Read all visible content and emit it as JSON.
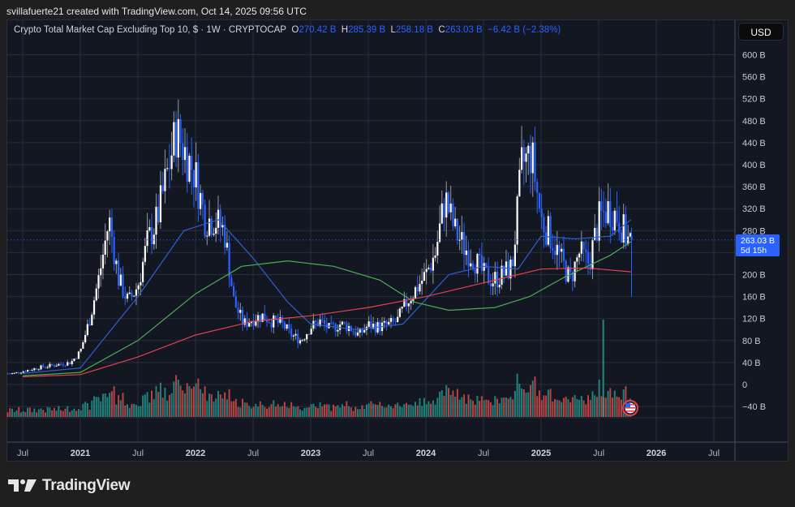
{
  "header": {
    "attribution": "svillafuerte21 created with TradingView.com, Oct 14, 2025 09:56 UTC"
  },
  "legend": {
    "symbol_title": "Crypto Total Market Cap Excluding Top 10, $ · 1W · CRYPTOCAP",
    "open_label": "O",
    "open": "270.42 B",
    "high_label": "H",
    "high": "285.39 B",
    "low_label": "L",
    "low": "258.18 B",
    "close_label": "C",
    "close": "263.03 B",
    "change": "−6.42 B (−2.38%)"
  },
  "price_scale": {
    "currency_button": "USD",
    "last_price": "263.03 B",
    "countdown": "5d 15h"
  },
  "branding": {
    "logo_text": "TradingView"
  },
  "colors": {
    "background": "#131722",
    "grid": "#2a2e39",
    "up_candle": "#ffffff",
    "down_candle": "#2962ff",
    "ma_blue": "#2f5fd0",
    "ma_green": "#4caf50",
    "ma_red": "#e0424f",
    "vol_up": "#26a69a",
    "vol_down": "#ef5350"
  },
  "chart_data": {
    "type": "candlestick",
    "title": "Crypto Total Market Cap Excluding Top 10, $ · 1W · CRYPTOCAP",
    "xlabel": "",
    "ylabel": "USD",
    "ylim": [
      -60,
      640
    ],
    "y_ticks": [
      "600 B",
      "560 B",
      "520 B",
      "480 B",
      "440 B",
      "400 B",
      "360 B",
      "320 B",
      "280 B",
      "200 B",
      "160 B",
      "120 B",
      "80 B",
      "40 B",
      "0",
      "−40 B"
    ],
    "x_ticks": [
      "Jul",
      "2021",
      "Jul",
      "2022",
      "Jul",
      "2023",
      "Jul",
      "2024",
      "Jul",
      "2025",
      "Jul",
      "2026",
      "Jul"
    ],
    "grid": true,
    "last_bar": {
      "open": 270.42,
      "high": 285.39,
      "low": 258.18,
      "close": 263.03,
      "change": -6.42,
      "change_pct": -2.38
    },
    "price_path_billions": {
      "x": [
        "2020-06",
        "2020-09",
        "2020-12",
        "2021-01",
        "2021-02",
        "2021-03",
        "2021-04",
        "2021-05",
        "2021-06",
        "2021-07",
        "2021-08",
        "2021-09",
        "2021-10",
        "2021-11",
        "2021-12",
        "2022-01",
        "2022-02",
        "2022-03",
        "2022-04",
        "2022-05",
        "2022-06",
        "2022-07",
        "2022-08",
        "2022-09",
        "2022-10",
        "2022-11",
        "2022-12",
        "2023-01",
        "2023-02",
        "2023-03",
        "2023-04",
        "2023-05",
        "2023-06",
        "2023-07",
        "2023-08",
        "2023-09",
        "2023-10",
        "2023-11",
        "2023-12",
        "2024-01",
        "2024-02",
        "2024-03",
        "2024-04",
        "2024-05",
        "2024-06",
        "2024-07",
        "2024-08",
        "2024-09",
        "2024-10",
        "2024-11",
        "2024-12",
        "2025-01",
        "2025-02",
        "2025-03",
        "2025-04",
        "2025-05",
        "2025-06",
        "2025-07",
        "2025-08",
        "2025-09",
        "2025-10"
      ],
      "close": [
        20,
        32,
        40,
        60,
        120,
        200,
        300,
        190,
        150,
        180,
        260,
        300,
        380,
        460,
        420,
        380,
        300,
        300,
        280,
        150,
        110,
        120,
        125,
        115,
        110,
        90,
        80,
        105,
        115,
        100,
        110,
        105,
        90,
        108,
        105,
        108,
        115,
        150,
        175,
        200,
        240,
        340,
        280,
        250,
        230,
        200,
        190,
        200,
        215,
        400,
        420,
        300,
        270,
        230,
        190,
        240,
        220,
        300,
        320,
        305,
        263
      ]
    },
    "series": [
      {
        "name": "MA (blue, short)",
        "color": "#2f5fd0",
        "points": [
          [
            2020.5,
            20
          ],
          [
            2021.0,
            30
          ],
          [
            2021.5,
            160
          ],
          [
            2021.9,
            280
          ],
          [
            2022.2,
            300
          ],
          [
            2022.5,
            230
          ],
          [
            2022.8,
            150
          ],
          [
            2023.0,
            110
          ],
          [
            2023.4,
            100
          ],
          [
            2023.8,
            110
          ],
          [
            2024.2,
            200
          ],
          [
            2024.5,
            215
          ],
          [
            2024.8,
            210
          ],
          [
            2025.0,
            270
          ],
          [
            2025.3,
            265
          ],
          [
            2025.6,
            270
          ],
          [
            2025.78,
            300
          ]
        ]
      },
      {
        "name": "MA (green, medium)",
        "color": "#4caf50",
        "points": [
          [
            2020.5,
            16
          ],
          [
            2021.0,
            22
          ],
          [
            2021.5,
            80
          ],
          [
            2022.0,
            165
          ],
          [
            2022.4,
            215
          ],
          [
            2022.8,
            225
          ],
          [
            2023.2,
            215
          ],
          [
            2023.6,
            190
          ],
          [
            2023.9,
            150
          ],
          [
            2024.2,
            135
          ],
          [
            2024.6,
            140
          ],
          [
            2024.9,
            160
          ],
          [
            2025.2,
            195
          ],
          [
            2025.6,
            235
          ],
          [
            2025.78,
            260
          ]
        ]
      },
      {
        "name": "MA (red, long)",
        "color": "#e0424f",
        "points": [
          [
            2020.5,
            14
          ],
          [
            2021.0,
            18
          ],
          [
            2021.5,
            50
          ],
          [
            2022.0,
            90
          ],
          [
            2022.5,
            115
          ],
          [
            2023.0,
            125
          ],
          [
            2023.5,
            140
          ],
          [
            2024.0,
            160
          ],
          [
            2024.5,
            185
          ],
          [
            2025.0,
            210
          ],
          [
            2025.4,
            212
          ],
          [
            2025.78,
            205
          ]
        ]
      }
    ],
    "volume_note": "Volume histogram at bottom (teal = up, red = down); largest spike ~mid-2025 (Jul 2025)"
  }
}
